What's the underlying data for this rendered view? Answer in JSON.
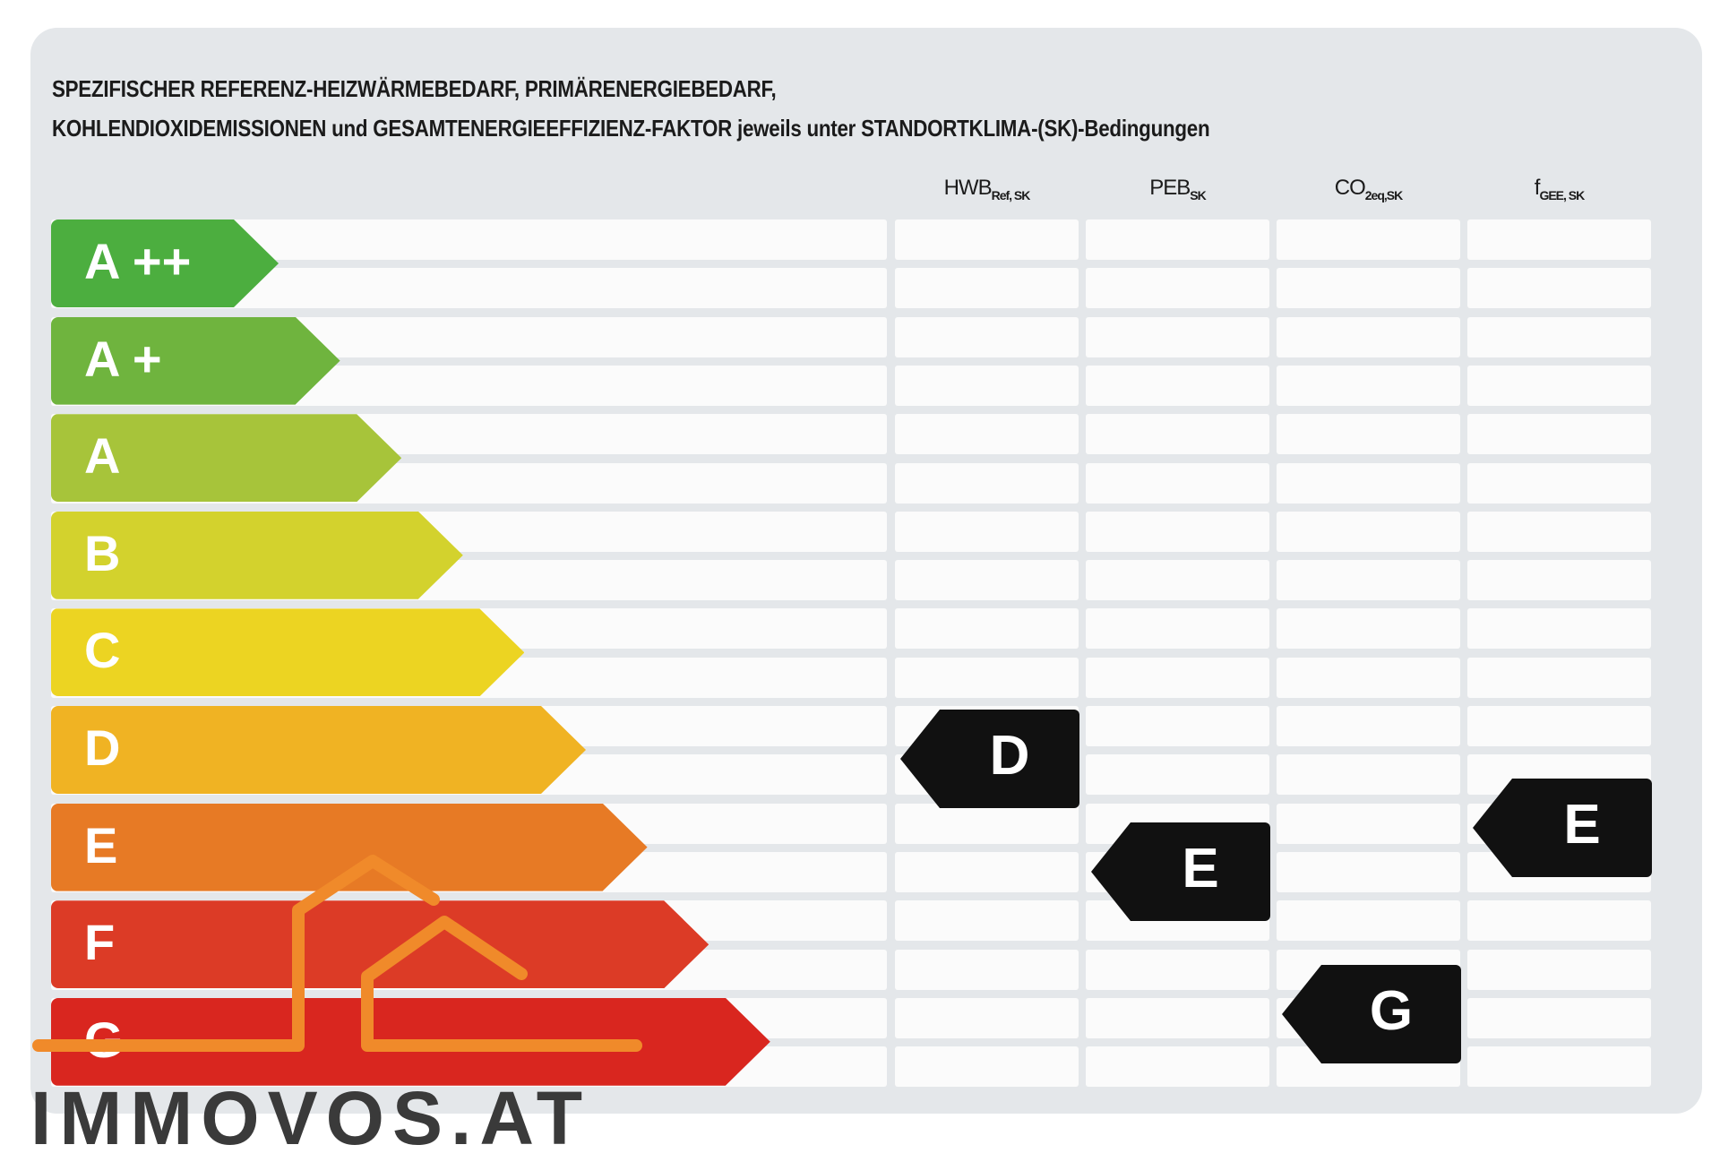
{
  "title": {
    "line1": "SPEZIFISCHER REFERENZ-HEIZWÄRMEBEDARF, PRIMÄRENERGIEBEDARF,",
    "line2": "KOHLENDIOXIDEMISSIONEN und GESAMTENERGIEEFFIZIENZ-FAKTOR jeweils unter STANDORTKLIMA-(SK)-Bedingungen"
  },
  "columns": [
    {
      "main": "HWB",
      "sub": "Ref, SK"
    },
    {
      "main": "PEB",
      "sub": "SK"
    },
    {
      "main": "CO",
      "sub": "2eq,SK"
    },
    {
      "main": "f",
      "sub": "GEE, SK"
    }
  ],
  "classes": [
    {
      "label": "A ++",
      "color": "#4cae3f"
    },
    {
      "label": "A +",
      "color": "#6fb43e"
    },
    {
      "label": "A",
      "color": "#a7c43a"
    },
    {
      "label": "B",
      "color": "#d3d22d"
    },
    {
      "label": "C",
      "color": "#ecd422"
    },
    {
      "label": "D",
      "color": "#f0b323"
    },
    {
      "label": "E",
      "color": "#e77a25"
    },
    {
      "label": "F",
      "color": "#dc3b26"
    },
    {
      "label": "G",
      "color": "#d9261f"
    }
  ],
  "ratings": [
    {
      "column": "HWB Ref,SK",
      "value": "D"
    },
    {
      "column": "PEB SK",
      "value": "E"
    },
    {
      "column": "CO2eq,SK",
      "value": "G"
    },
    {
      "column": "fGEE,SK",
      "value": "E"
    }
  ],
  "logo": {
    "text": "IMMOVOS.AT",
    "color": "#f08a2a"
  }
}
